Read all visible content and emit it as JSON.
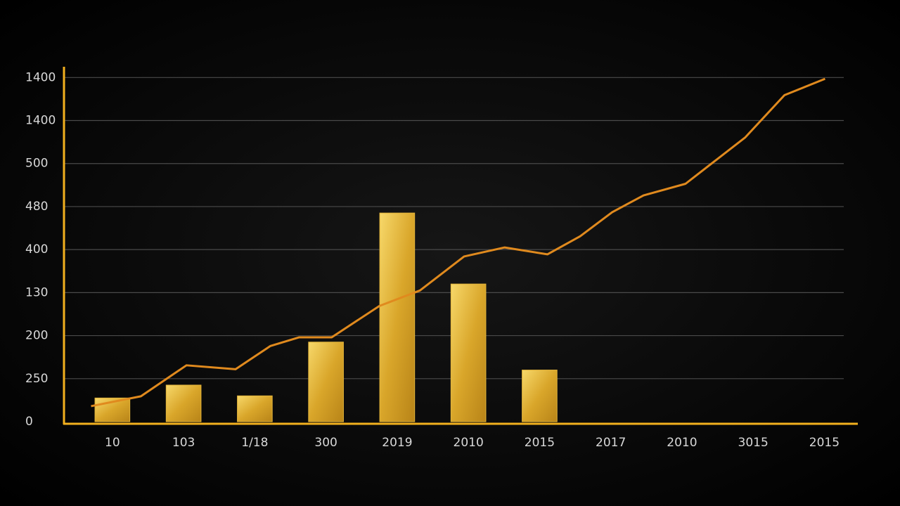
{
  "chart_data": {
    "type": "bar",
    "categories": [
      "10",
      "103",
      "1/18",
      "300",
      "2019",
      "2010",
      "2015",
      "2017",
      "2010",
      "3015",
      "2015"
    ],
    "xlim": [
      -0.69,
      10.47
    ],
    "ylim": [
      0,
      8.25
    ],
    "yticks": [
      0,
      {
        "value": 1,
        "label": "250"
      },
      {
        "value": 2,
        "label": "200"
      },
      {
        "value": 3,
        "label": "130"
      },
      {
        "value": 4,
        "label": "400"
      },
      {
        "value": 5,
        "label": "480"
      },
      {
        "value": 6,
        "label": "500"
      },
      {
        "value": 7,
        "label": "1400"
      },
      {
        "value": 8,
        "label": "1400"
      }
    ],
    "grid": true,
    "axis_color": "#f2b01e",
    "bars": {
      "color": "#e3b43a",
      "values": [
        0.55,
        0.85,
        0.6,
        1.85,
        4.85,
        3.2,
        1.2,
        null,
        null,
        null,
        null
      ]
    },
    "line": {
      "type": "line",
      "color": "#e08a1e",
      "x": [
        -0.3,
        0.4,
        1.04,
        1.73,
        2.22,
        2.62,
        3.08,
        3.75,
        4.32,
        4.94,
        5.51,
        6.11,
        6.57,
        7.02,
        7.46,
        8.05,
        8.89,
        9.44,
        10.01
      ],
      "values": [
        0.36,
        0.59,
        1.31,
        1.22,
        1.76,
        1.96,
        1.96,
        2.69,
        3.05,
        3.84,
        4.05,
        3.89,
        4.31,
        4.87,
        5.26,
        5.53,
        6.61,
        7.59,
        7.97
      ]
    }
  }
}
